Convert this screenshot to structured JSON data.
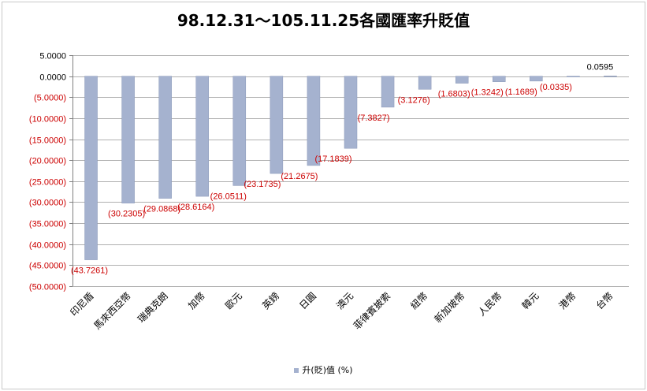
{
  "chart_data": {
    "type": "bar",
    "title": "98.12.31～105.11.25各國匯率升貶值",
    "categories": [
      "印尼盾",
      "馬來西亞幣",
      "瑞典克朗",
      "加幣",
      "歐元",
      "英鎊",
      "日圓",
      "澳元",
      "菲律賓披索",
      "紐幣",
      "新加坡幣",
      "人民幣",
      "韓元",
      "港幣",
      "台幣"
    ],
    "series": [
      {
        "name": "升(貶)值 (%)",
        "values": [
          -43.7261,
          -30.2305,
          -29.0868,
          -28.6164,
          -26.0511,
          -23.1735,
          -21.2675,
          -17.1839,
          -7.3827,
          -3.1276,
          -1.6803,
          -1.3242,
          -1.1689,
          -0.0335,
          0.0595
        ],
        "labels": [
          "(43.7261)",
          "(30.2305)",
          "(29.0868)",
          "(28.6164)",
          "(26.0511)",
          "(23.1735)",
          "(21.2675)",
          "(17.1839)",
          "(7.3827)",
          "(3.1276)",
          "(1.6803)",
          "(1.3242)",
          "(1.1689)",
          "(0.0335)",
          "0.0595"
        ]
      }
    ],
    "ylim": [
      -50,
      5
    ],
    "yticks": [
      5,
      0,
      -5,
      -10,
      -15,
      -20,
      -25,
      -30,
      -35,
      -40,
      -45,
      -50
    ],
    "ytick_labels": [
      "5.0000",
      "0.0000",
      "(5.0000)",
      "(10.0000)",
      "(15.0000)",
      "(20.0000)",
      "(25.0000)",
      "(30.0000)",
      "(35.0000)",
      "(40.0000)",
      "(45.0000)",
      "(50.0000)"
    ],
    "grid": true,
    "legend_position": "bottom",
    "colors": {
      "bar": "#a5b2cf",
      "bar_edge": "#8a98b8",
      "negative_text": "#cc0000",
      "positive_text": "#000000",
      "grid": "#b0b0b0"
    }
  }
}
